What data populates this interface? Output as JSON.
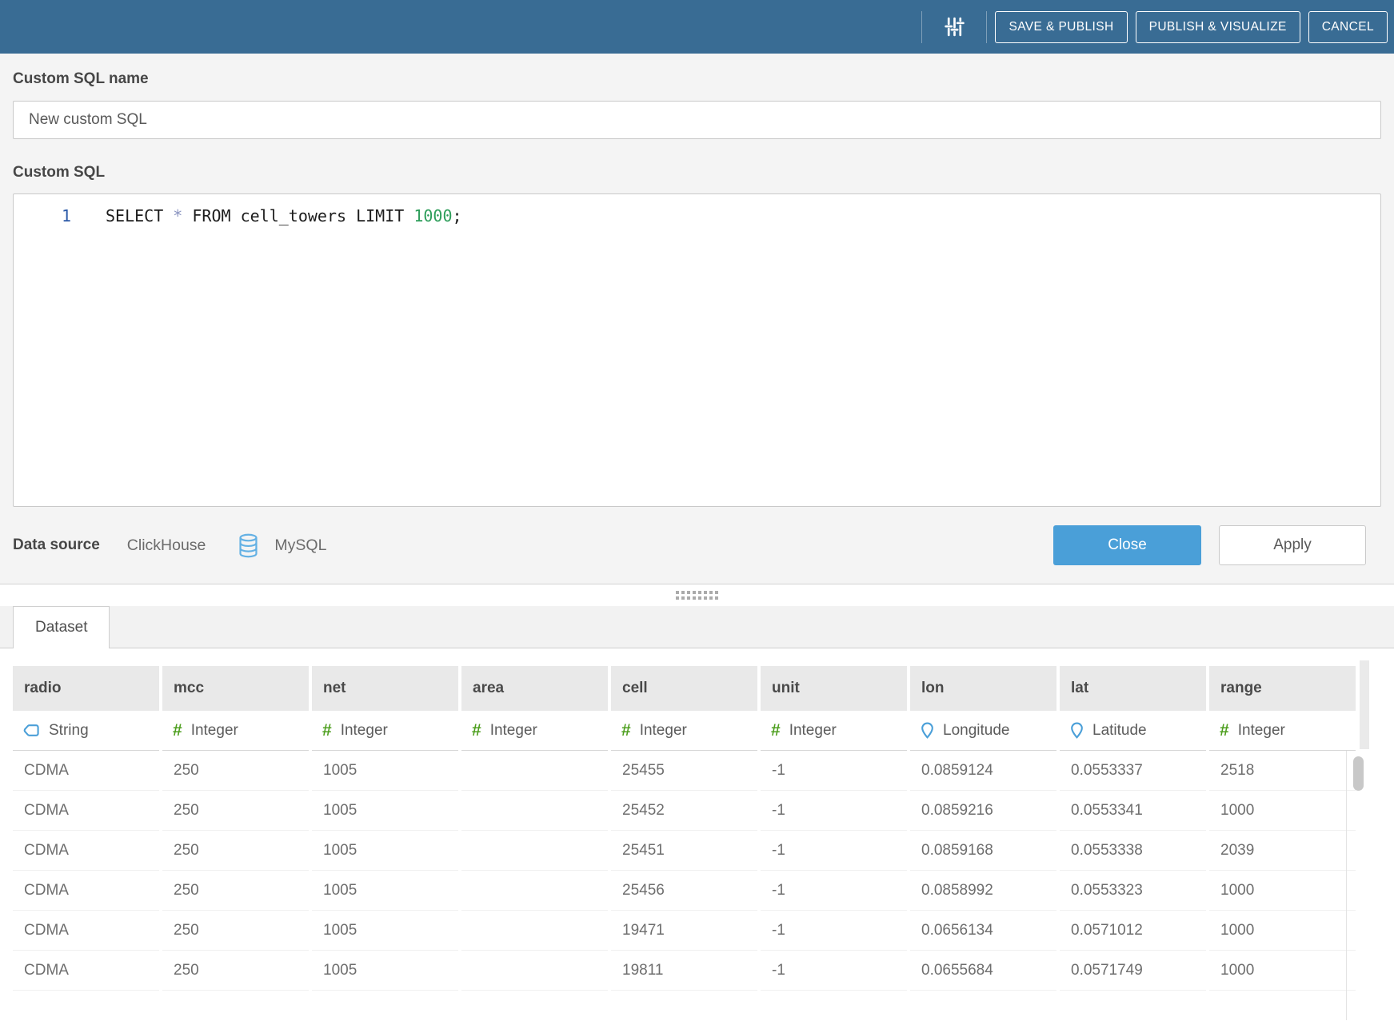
{
  "header": {
    "bg_color": "#396c94",
    "settings_icon": "sliders-icon",
    "buttons": {
      "save_publish": "SAVE & PUBLISH",
      "publish_visualize": "PUBLISH & VISUALIZE",
      "cancel": "CANCEL"
    }
  },
  "custom_sql": {
    "name_label": "Custom SQL name",
    "name_value": "New custom SQL",
    "sql_label": "Custom SQL",
    "line_number": "1",
    "code": {
      "select_kw": "SELECT ",
      "star": "*",
      "from_clause": " FROM cell_towers LIMIT ",
      "number": "1000",
      "semicolon": ";"
    },
    "code_colors": {
      "keyword": "#1c1c1c",
      "star": "#8a94c0",
      "number": "#2e9e5b",
      "line_number": "#2c5aa8"
    }
  },
  "footer": {
    "datasource_label": "Data source",
    "datasource_name": "ClickHouse",
    "datasource_type": "MySQL",
    "datasource_type_icon": "database-icon",
    "close_label": "Close",
    "apply_label": "Apply",
    "close_color": "#4a9fd8"
  },
  "dataset": {
    "tab_label": "Dataset",
    "columns": [
      {
        "name": "radio",
        "type": "String",
        "icon": "string-type-icon"
      },
      {
        "name": "mcc",
        "type": "Integer",
        "icon": "integer-type-icon"
      },
      {
        "name": "net",
        "type": "Integer",
        "icon": "integer-type-icon"
      },
      {
        "name": "area",
        "type": "Integer",
        "icon": "integer-type-icon"
      },
      {
        "name": "cell",
        "type": "Integer",
        "icon": "integer-type-icon"
      },
      {
        "name": "unit",
        "type": "Integer",
        "icon": "integer-type-icon"
      },
      {
        "name": "lon",
        "type": "Longitude",
        "icon": "longitude-pin-icon"
      },
      {
        "name": "lat",
        "type": "Latitude",
        "icon": "latitude-pin-icon"
      },
      {
        "name": "range",
        "type": "Integer",
        "icon": "integer-type-icon"
      }
    ],
    "type_colors": {
      "integer": "#4e9f1f",
      "geo": "#4a9fd8",
      "string": "#4a9fd8"
    },
    "rows": [
      [
        "CDMA",
        "250",
        "1005",
        "",
        "25455",
        "-1",
        "0.0859124",
        "0.0553337",
        "2518"
      ],
      [
        "CDMA",
        "250",
        "1005",
        "",
        "25452",
        "-1",
        "0.0859216",
        "0.0553341",
        "1000"
      ],
      [
        "CDMA",
        "250",
        "1005",
        "",
        "25451",
        "-1",
        "0.0859168",
        "0.0553338",
        "2039"
      ],
      [
        "CDMA",
        "250",
        "1005",
        "",
        "25456",
        "-1",
        "0.0858992",
        "0.0553323",
        "1000"
      ],
      [
        "CDMA",
        "250",
        "1005",
        "",
        "19471",
        "-1",
        "0.0656134",
        "0.0571012",
        "1000"
      ],
      [
        "CDMA",
        "250",
        "1005",
        "",
        "19811",
        "-1",
        "0.0655684",
        "0.0571749",
        "1000"
      ]
    ]
  }
}
